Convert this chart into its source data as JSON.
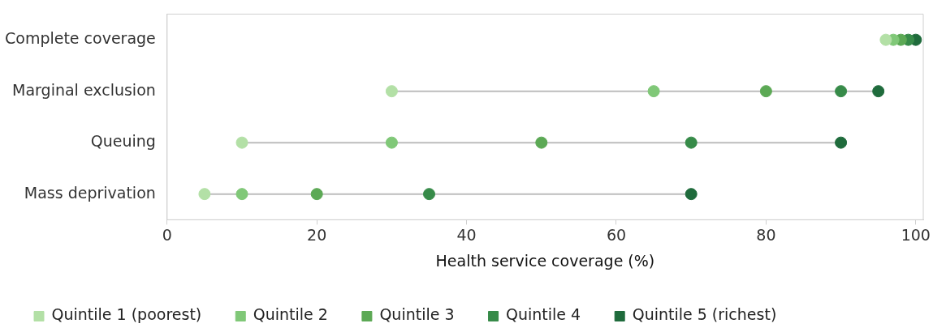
{
  "chart_data": {
    "type": "scatter",
    "orientation": "horizontal",
    "xlabel": "Health service coverage (%)",
    "categories": [
      "Complete coverage",
      "Marginal exclusion",
      "Queuing",
      "Mass deprivation"
    ],
    "series": [
      {
        "name": "Quintile 1 (poorest)",
        "color": "#b3e0a6",
        "values": [
          96,
          30,
          10,
          5
        ]
      },
      {
        "name": "Quintile 2",
        "color": "#80c878",
        "values": [
          97,
          65,
          30,
          10
        ]
      },
      {
        "name": "Quintile 3",
        "color": "#5ca955",
        "values": [
          98,
          80,
          50,
          20
        ]
      },
      {
        "name": "Quintile 4",
        "color": "#378b49",
        "values": [
          99,
          90,
          70,
          35
        ]
      },
      {
        "name": "Quintile 5 (richest)",
        "color": "#1f6b3c",
        "values": [
          100,
          95,
          90,
          70
        ]
      }
    ],
    "xlim": [
      0,
      101
    ],
    "xticks": [
      0,
      20,
      40,
      60,
      80,
      100
    ],
    "grid": false,
    "legend": "bottom",
    "marker": "circle"
  }
}
